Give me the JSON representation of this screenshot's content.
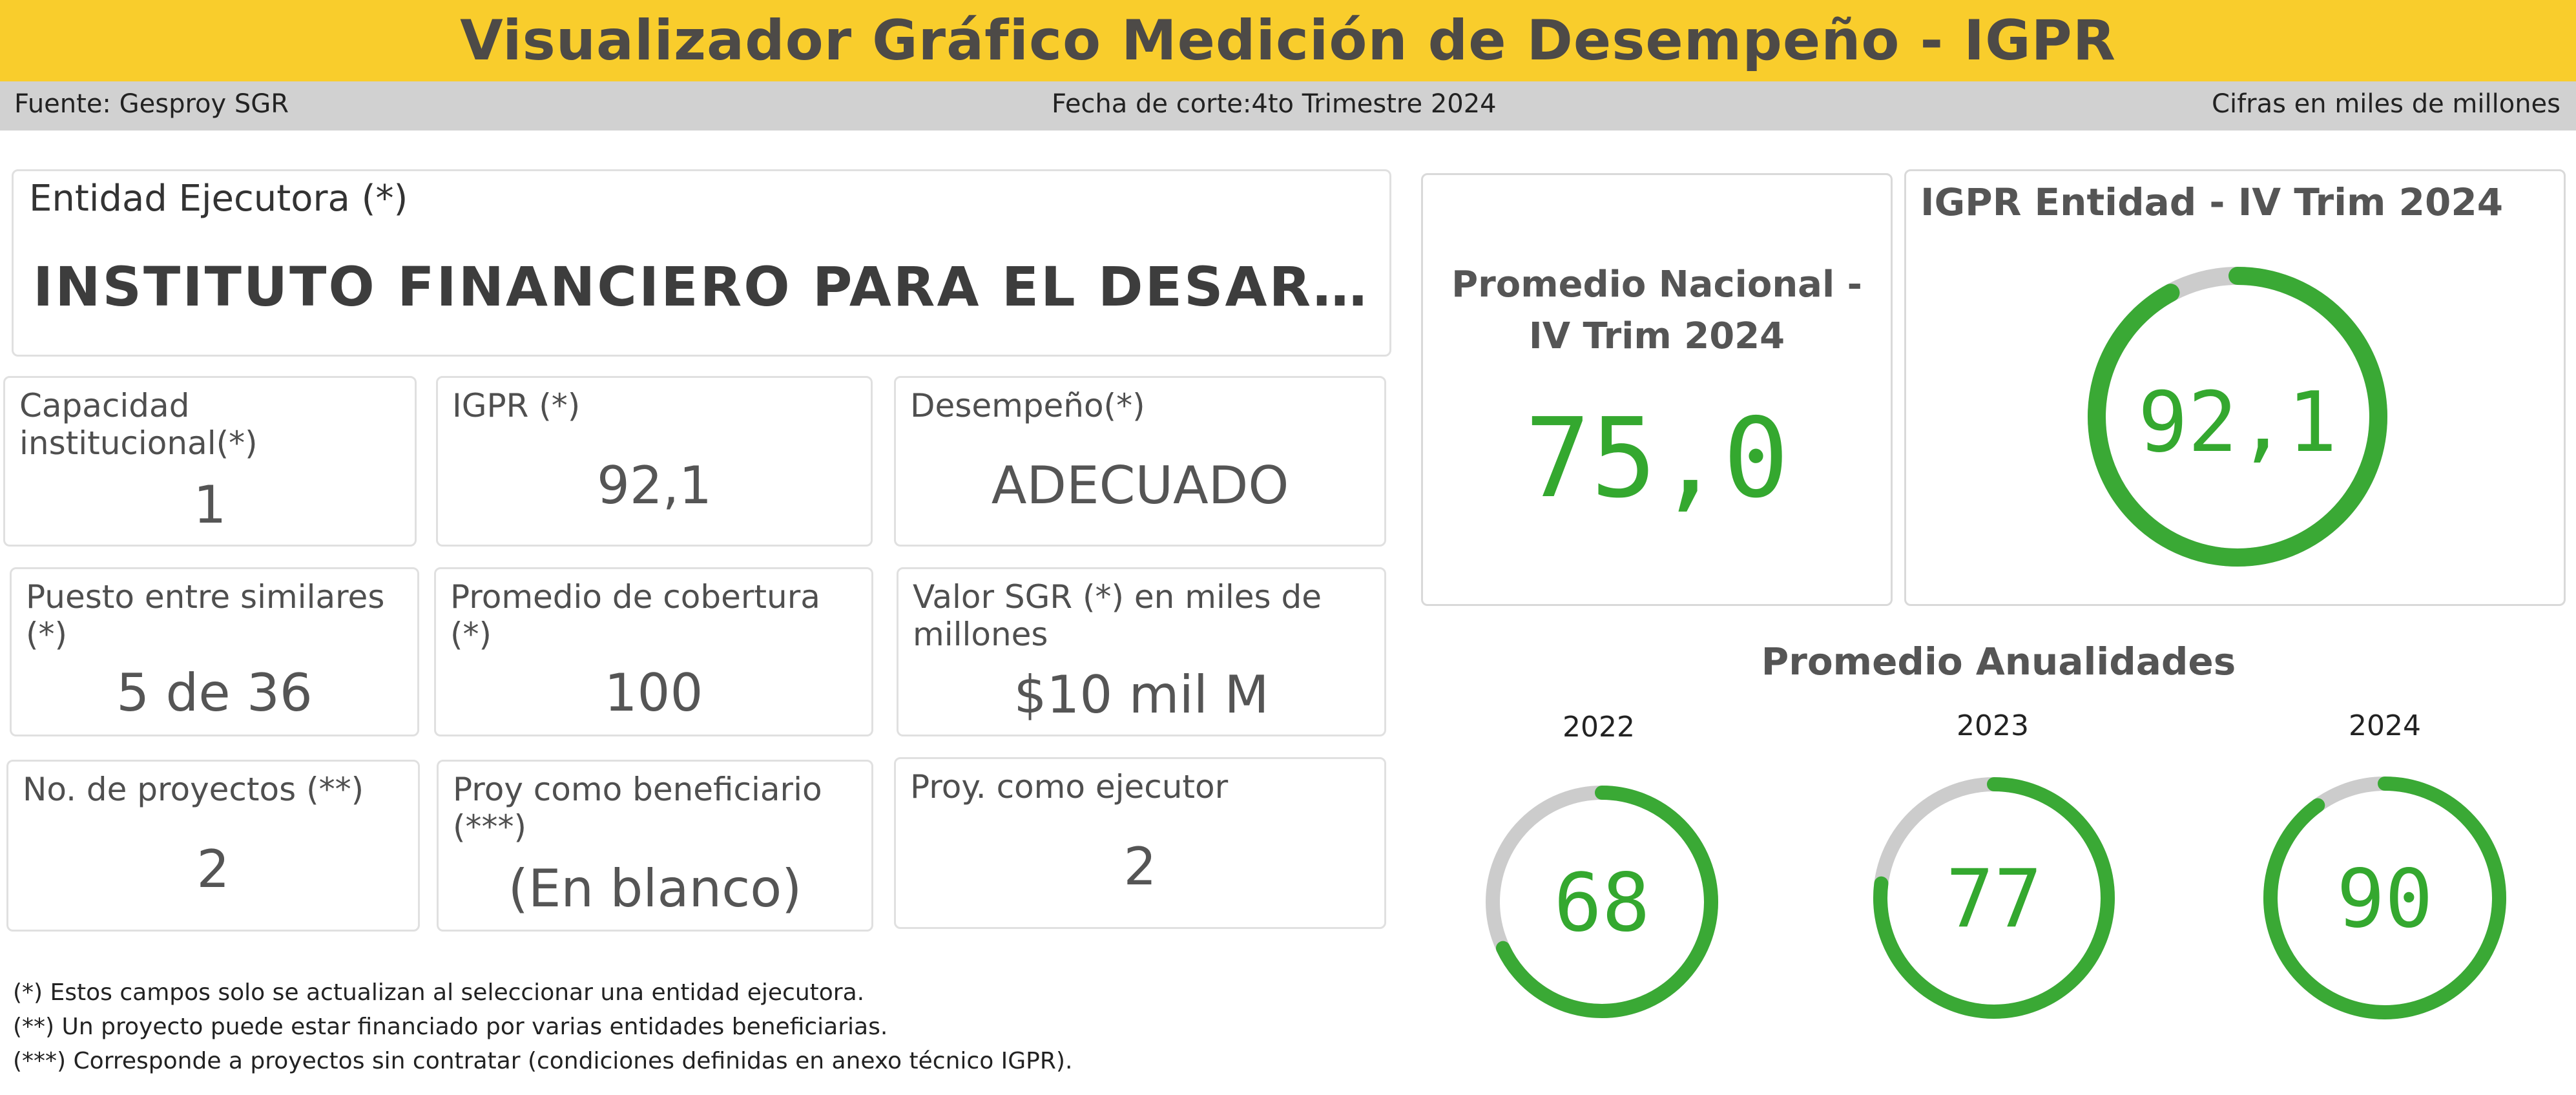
{
  "header": {
    "title": "Visualizador Gráfico Medición de Desempeño - IGPR"
  },
  "subbar": {
    "source": "Fuente: Gesproy SGR",
    "cutoff": "Fecha de corte:4to Trimestre 2024",
    "units": "Cifras en miles de millones"
  },
  "entidad": {
    "label": "Entidad Ejecutora (*)",
    "value": "INSTITUTO FINANCIERO PARA EL DESARRO..."
  },
  "kpis": {
    "capacidad": {
      "label": "Capacidad institucional(*)",
      "value": "1"
    },
    "igpr": {
      "label": "IGPR (*)",
      "value": "92,1"
    },
    "desempeno": {
      "label": "Desempeño(*)",
      "value": "ADECUADO"
    },
    "puesto": {
      "label": "Puesto entre similares (*)",
      "value": "5 de 36"
    },
    "cobertura": {
      "label": "Promedio de cobertura (*)",
      "value": "100"
    },
    "valor": {
      "label": "Valor SGR (*) en miles de millones",
      "value": "$10 mil M"
    },
    "proyectos": {
      "label": "No. de proyectos (**)",
      "value": "2"
    },
    "beneficiario": {
      "label": "Proy como beneficiario (***)",
      "value": "(En blanco)"
    },
    "ejecutor": {
      "label": "Proy. como ejecutor",
      "value": "2"
    }
  },
  "notes": [
    "(*) Estos campos solo se actualizan al seleccionar una entidad ejecutora.",
    "(**) Un proyecto puede estar financiado por varias entidades beneficiarias.",
    "(***) Corresponde a proyectos sin contratar (condiciones definidas en anexo técnico IGPR)."
  ],
  "promedio_nacional": {
    "title_line1": "Promedio Nacional -",
    "title_line2": "IV Trim 2024",
    "value": "75,0"
  },
  "igpr_entidad": {
    "title": "IGPR Entidad - IV Trim 2024",
    "value": "92,1",
    "fraction": 0.921
  },
  "anualidades": {
    "title": "Promedio Anualidades",
    "items": [
      {
        "year": "2022",
        "value": "68",
        "fraction": 0.68
      },
      {
        "year": "2023",
        "value": "77",
        "fraction": 0.77
      },
      {
        "year": "2024",
        "value": "90",
        "fraction": 0.9
      }
    ]
  },
  "colors": {
    "accent": "#f9cd2c",
    "gauge_fill": "#3aa935",
    "gauge_track": "#cccccc",
    "value_green": "#34a82f"
  }
}
